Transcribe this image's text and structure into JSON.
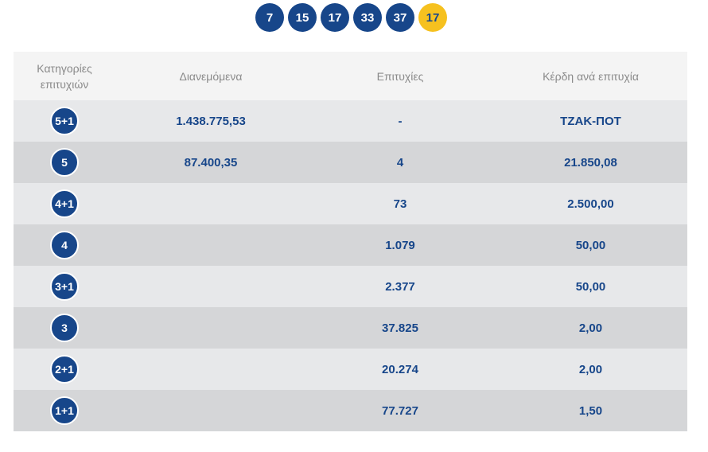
{
  "draw_numbers": [
    "7",
    "15",
    "17",
    "33",
    "37"
  ],
  "bonus_number": "17",
  "headers": {
    "category": "Κατηγορίες επιτυχιών",
    "distributed": "Διανεμόμενα",
    "winners": "Επιτυχίες",
    "prize": "Κέρδη ανά επιτυχία"
  },
  "rows": [
    {
      "category": "5+1",
      "distributed": "1.438.775,53",
      "winners": "-",
      "prize": "ΤΖΑΚ-ΠΟΤ"
    },
    {
      "category": "5",
      "distributed": "87.400,35",
      "winners": "4",
      "prize": "21.850,08"
    },
    {
      "category": "4+1",
      "distributed": "",
      "winners": "73",
      "prize": "2.500,00"
    },
    {
      "category": "4",
      "distributed": "",
      "winners": "1.079",
      "prize": "50,00"
    },
    {
      "category": "3+1",
      "distributed": "",
      "winners": "2.377",
      "prize": "50,00"
    },
    {
      "category": "3",
      "distributed": "",
      "winners": "37.825",
      "prize": "2,00"
    },
    {
      "category": "2+1",
      "distributed": "",
      "winners": "20.274",
      "prize": "2,00"
    },
    {
      "category": "1+1",
      "distributed": "",
      "winners": "77.727",
      "prize": "1,50"
    }
  ],
  "colors": {
    "primary": "#17468a",
    "bonus": "#f6c11f",
    "header_bg": "#f4f4f4",
    "row_light": "#e7e8ea",
    "row_dark": "#d5d6d8"
  }
}
